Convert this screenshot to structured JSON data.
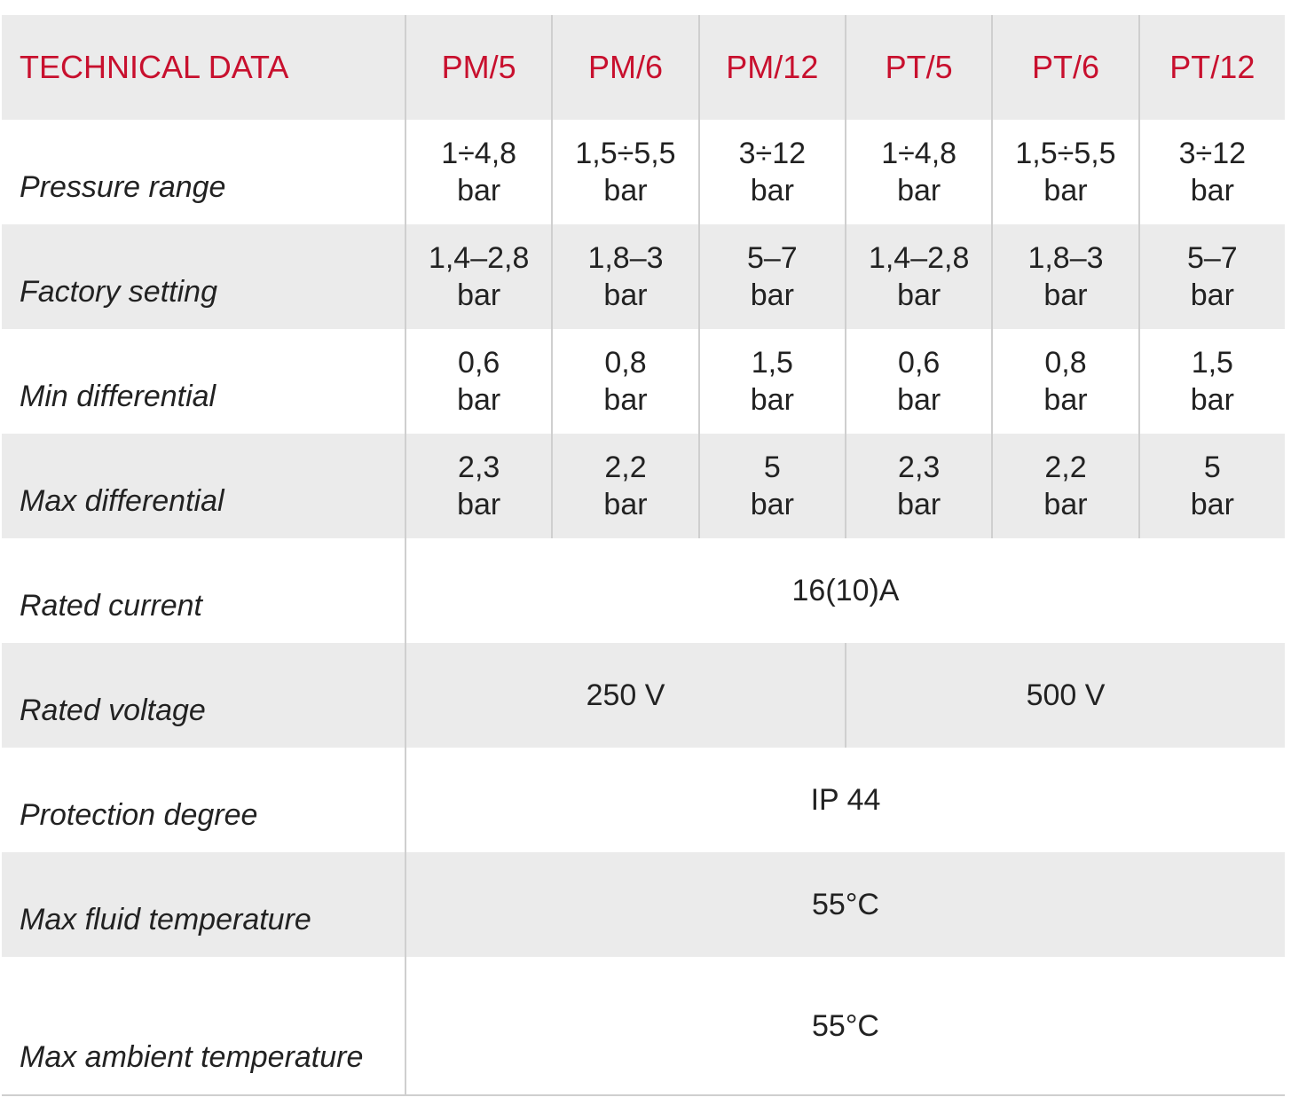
{
  "header": {
    "title": "TECHNICAL DATA",
    "models": [
      "PM/5",
      "PM/6",
      "PM/12",
      "PT/5",
      "PT/6",
      "PT/12"
    ]
  },
  "rows": [
    {
      "label": "Pressure range",
      "cells": [
        [
          "1÷4,8",
          "bar"
        ],
        [
          "1,5÷5,5",
          "bar"
        ],
        [
          "3÷12",
          "bar"
        ],
        [
          "1÷4,8",
          "bar"
        ],
        [
          "1,5÷5,5",
          "bar"
        ],
        [
          "3÷12",
          "bar"
        ]
      ]
    },
    {
      "label": "Factory setting",
      "cells": [
        [
          "1,4–2,8",
          "bar"
        ],
        [
          "1,8–3",
          "bar"
        ],
        [
          "5–7",
          "bar"
        ],
        [
          "1,4–2,8",
          "bar"
        ],
        [
          "1,8–3",
          "bar"
        ],
        [
          "5–7",
          "bar"
        ]
      ]
    },
    {
      "label": "Min differential",
      "cells": [
        [
          "0,6",
          "bar"
        ],
        [
          "0,8",
          "bar"
        ],
        [
          "1,5",
          "bar"
        ],
        [
          "0,6",
          "bar"
        ],
        [
          "0,8",
          "bar"
        ],
        [
          "1,5",
          "bar"
        ]
      ]
    },
    {
      "label": "Max differential",
      "cells": [
        [
          "2,3",
          "bar"
        ],
        [
          "2,2",
          "bar"
        ],
        [
          "5",
          "bar"
        ],
        [
          "2,3",
          "bar"
        ],
        [
          "2,2",
          "bar"
        ],
        [
          "5",
          "bar"
        ]
      ]
    },
    {
      "label": "Rated current",
      "cells": [
        [
          "16(10)A"
        ]
      ]
    },
    {
      "label": "Rated voltage",
      "cells": [
        [
          "250 V"
        ],
        [
          "500 V"
        ]
      ]
    },
    {
      "label": "Protection degree",
      "cells": [
        [
          "IP 44"
        ]
      ]
    },
    {
      "label": "Max fluid temperature",
      "cells": [
        [
          "55°C"
        ]
      ]
    },
    {
      "label": "Max ambient temperature",
      "cells": [
        [
          "55°C"
        ]
      ]
    }
  ]
}
